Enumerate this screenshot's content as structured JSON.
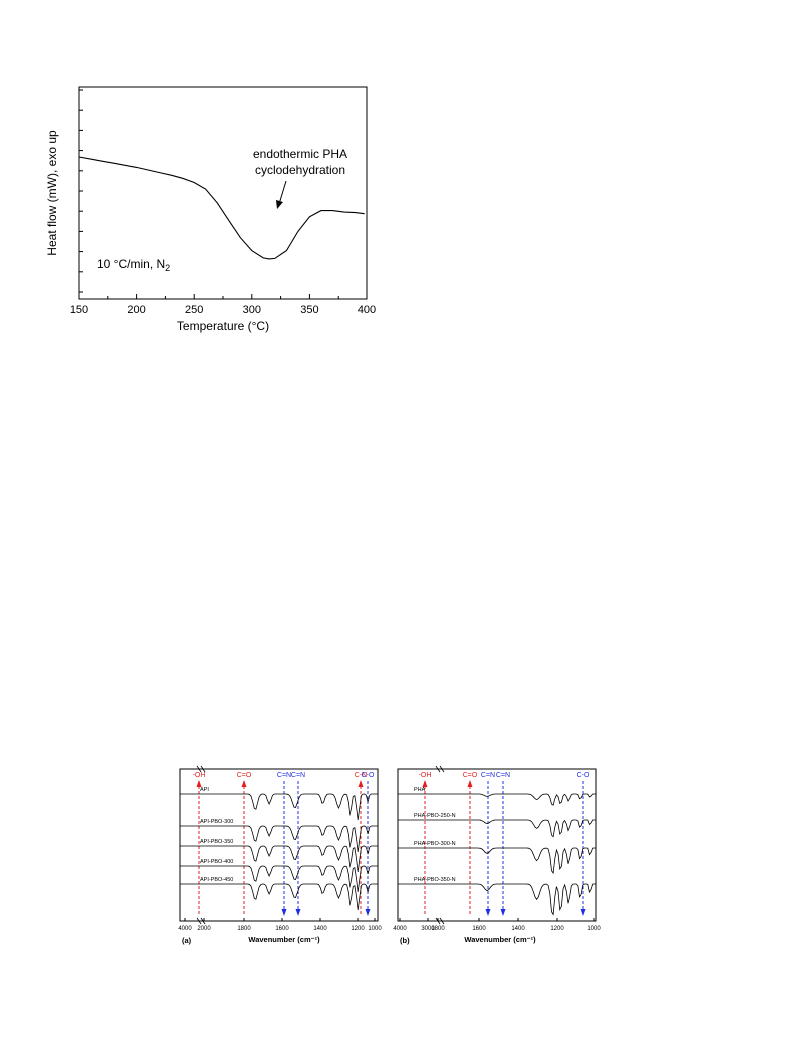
{
  "chart_data": [
    {
      "type": "line",
      "xlabel": "Temperature (°C)",
      "ylabel": "Heat flow (mW), exo up",
      "xlim": [
        150,
        400
      ],
      "xticks": [
        "150",
        "200",
        "250",
        "300",
        "350",
        "400"
      ],
      "yticks_labels": false,
      "annotations": {
        "peak_note_line1": "endothermic PHA",
        "peak_note_line2": "cyclodehydration",
        "condition": "10 °C/min, N",
        "condition_sub": "2"
      },
      "series": [
        {
          "x": [
            150,
            160,
            170,
            180,
            190,
            200,
            210,
            220,
            230,
            240,
            250,
            260,
            270,
            280,
            290,
            300,
            310,
            315,
            320,
            330,
            340,
            350,
            360,
            370,
            380,
            390,
            398
          ],
          "y": [
            0.0,
            -0.04,
            -0.08,
            -0.12,
            -0.16,
            -0.2,
            -0.25,
            -0.3,
            -0.35,
            -0.41,
            -0.49,
            -0.62,
            -0.88,
            -1.22,
            -1.55,
            -1.8,
            -1.94,
            -1.96,
            -1.95,
            -1.8,
            -1.43,
            -1.15,
            -1.03,
            -1.03,
            -1.06,
            -1.07,
            -1.09
          ]
        }
      ]
    },
    {
      "type": "line",
      "panel": "(a)",
      "xlabel": "Wavenumber (cm⁻¹)",
      "xticks": [
        "4000",
        "2000",
        "1800",
        "1600",
        "1400",
        "1200",
        "1000"
      ],
      "spectra": [
        "API",
        "API-PBO-300",
        "API-PBO-350",
        "API-PBO-400",
        "API-PBO-450"
      ],
      "bands": [
        {
          "label": "-OH",
          "color": "#e02020",
          "x": 2000,
          "dir": "up"
        },
        {
          "label": "C=O",
          "color": "#e02020",
          "x": 1800,
          "dir": "up"
        },
        {
          "label": "C=N",
          "color": "#2030e0",
          "x": 1560,
          "dir": "down"
        },
        {
          "label": "C=N",
          "color": "#2030e0",
          "x": 1480,
          "dir": "down"
        },
        {
          "label": "C-N",
          "color": "#e02020",
          "x": 1100,
          "dir": "up"
        },
        {
          "label": "C-O",
          "color": "#2030e0",
          "x": 1055,
          "dir": "down"
        }
      ]
    },
    {
      "type": "line",
      "panel": "(b)",
      "xlabel": "Wavenumber (cm⁻¹)",
      "xticks": [
        "4000",
        "3000",
        "1800",
        "1600",
        "1400",
        "1200",
        "1000"
      ],
      "spectra": [
        "PHA",
        "PHA-PBO-250-N",
        "PHA-PBO-300-N",
        "PHA-PBO-350-N"
      ],
      "bands": [
        {
          "label": "-OH",
          "color": "#e02020",
          "x": 3300,
          "dir": "up"
        },
        {
          "label": "C=O",
          "color": "#e02020",
          "x": 1650,
          "dir": "up"
        },
        {
          "label": "C=N",
          "color": "#2030e0",
          "x": 1570,
          "dir": "down"
        },
        {
          "label": "C=N",
          "color": "#2030e0",
          "x": 1480,
          "dir": "down"
        },
        {
          "label": "C-O",
          "color": "#2030e0",
          "x": 1060,
          "dir": "down"
        }
      ]
    }
  ]
}
